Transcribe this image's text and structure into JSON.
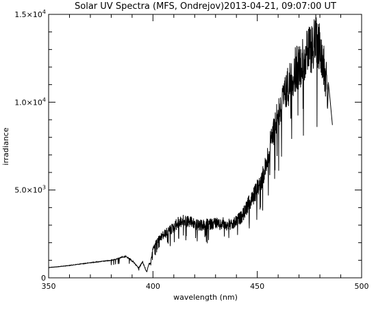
{
  "chart_data": {
    "type": "line",
    "title": "Solar UV Spectra (MFS, Ondrejov)2013-04-21, 09:07:00 UT",
    "xlabel": "wavelength (nm)",
    "ylabel": "irradiance",
    "xlim": [
      350,
      500
    ],
    "ylim": [
      0,
      15000
    ],
    "grid": false,
    "legend": "none",
    "line_color": "#000000",
    "x_ticks": [
      {
        "value": 350,
        "label": "350"
      },
      {
        "value": 400,
        "label": "400"
      },
      {
        "value": 450,
        "label": "450"
      },
      {
        "value": 500,
        "label": "500"
      }
    ],
    "y_ticks": [
      {
        "value": 0,
        "mant": "0",
        "exp": ""
      },
      {
        "value": 5000,
        "mant": "5.0×10",
        "exp": "3"
      },
      {
        "value": 10000,
        "mant": "1.0×10",
        "exp": "4"
      },
      {
        "value": 15000,
        "mant": "1.5×10",
        "exp": "4"
      }
    ],
    "series": [
      {
        "x": [
          350,
          355,
          360,
          365,
          370,
          375,
          380,
          383,
          385,
          387,
          389,
          391,
          393,
          394,
          395,
          396,
          397,
          398,
          399,
          400,
          402,
          405,
          408,
          410,
          412,
          415,
          418,
          420,
          422,
          425,
          428,
          430,
          432,
          434,
          435,
          436,
          438,
          440,
          442,
          444,
          446,
          448,
          450,
          452,
          454,
          456,
          458,
          460,
          462,
          464,
          466,
          468,
          470,
          472,
          474,
          476,
          477,
          478,
          479,
          480,
          481,
          482,
          483,
          484,
          485,
          486
        ],
        "y": [
          600,
          650,
          720,
          800,
          880,
          950,
          1020,
          1100,
          1200,
          1250,
          1100,
          900,
          600,
          750,
          1000,
          650,
          350,
          800,
          1000,
          1800,
          2300,
          2700,
          3000,
          3200,
          3500,
          3600,
          3550,
          3400,
          3300,
          3350,
          3400,
          3500,
          3300,
          3500,
          3250,
          3400,
          3300,
          3600,
          3800,
          4200,
          4700,
          5100,
          5600,
          6200,
          7000,
          8200,
          9500,
          10400,
          11000,
          11800,
          12600,
          13100,
          13400,
          13800,
          14200,
          14500,
          14800,
          15000,
          14800,
          14700,
          14300,
          13500,
          12400,
          11200,
          10000,
          8700
        ]
      }
    ]
  }
}
